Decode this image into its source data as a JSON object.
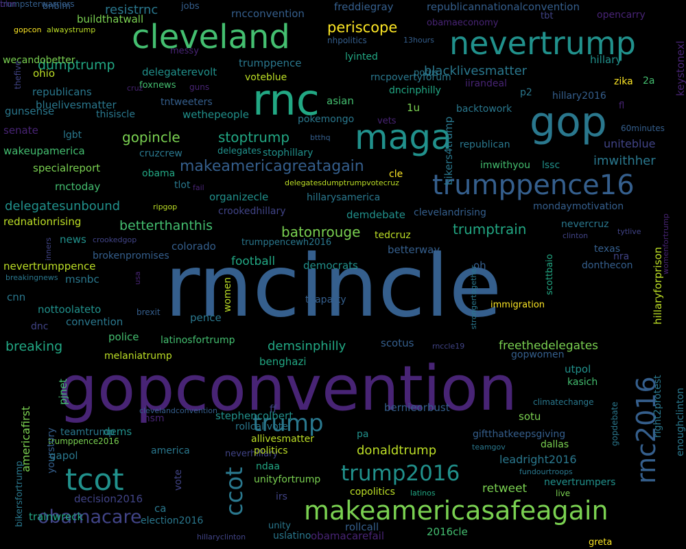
{
  "palette": [
    "#440154",
    "#482475",
    "#414487",
    "#355f8d",
    "#2a788e",
    "#21918c",
    "#22a884",
    "#44bf70",
    "#7ad151",
    "#bddf26",
    "#fde725"
  ],
  "words": [
    {
      "text": "rncincle",
      "c": 3
    },
    {
      "text": "gopconvention",
      "c": 1
    },
    {
      "text": "rnc",
      "c": 6
    },
    {
      "text": "gop",
      "c": 4
    },
    {
      "text": "maga",
      "c": 5
    },
    {
      "text": "cleveland",
      "c": 7
    },
    {
      "text": "nevertrump",
      "c": 5
    },
    {
      "text": "trumppence16",
      "c": 3
    },
    {
      "text": "tcot",
      "c": 5
    },
    {
      "text": "makeamericasafeagain",
      "c": 8
    },
    {
      "text": "rnc2016",
      "c": 3
    },
    {
      "text": "trump2016",
      "c": 5
    },
    {
      "text": "ccot",
      "c": 4
    },
    {
      "text": "obamacare",
      "c": 2
    },
    {
      "text": "trump",
      "c": 4
    },
    {
      "text": "makeamericagreatagain",
      "c": 3
    },
    {
      "text": "gopincle",
      "c": 8
    },
    {
      "text": "stoptrump",
      "c": 6
    },
    {
      "text": "periscope",
      "c": 10
    },
    {
      "text": "dumptrump",
      "c": 6
    },
    {
      "text": "resistrnc",
      "c": 4
    },
    {
      "text": "betterthanthis",
      "c": 7
    },
    {
      "text": "trumptrain",
      "c": 6
    },
    {
      "text": "breaking",
      "c": 6
    },
    {
      "text": "delegatesunbound",
      "c": 5
    },
    {
      "text": "freethedelegates",
      "c": 8
    },
    {
      "text": "batonrouge",
      "c": 8
    },
    {
      "text": "blacklivesmatter",
      "c": 4
    },
    {
      "text": "demsinphilly",
      "c": 6
    },
    {
      "text": "imwithher",
      "c": 4
    },
    {
      "text": "football",
      "c": 6
    },
    {
      "text": "donaldtrump",
      "c": 9
    },
    {
      "text": "retweet",
      "c": 8
    },
    {
      "text": "leadright2016",
      "c": 4
    },
    {
      "text": "americafirst",
      "c": 8
    },
    {
      "text": "hillaryforprison",
      "c": 9
    },
    {
      "text": "right2protest",
      "c": 4
    },
    {
      "text": "bikers4trump",
      "c": 4
    },
    {
      "text": "freddiegray",
      "c": 3
    },
    {
      "text": "republicannationalconvention",
      "c": 3
    },
    {
      "text": "buildthatwall",
      "c": 8
    },
    {
      "text": "rncconvention",
      "c": 3
    },
    {
      "text": "bnblm",
      "c": 3
    },
    {
      "text": "jobs",
      "c": 3
    },
    {
      "text": "tbt",
      "c": 2
    },
    {
      "text": "opencarry",
      "c": 1
    },
    {
      "text": "obamaeconomy",
      "c": 1
    },
    {
      "text": "nhpolitics",
      "c": 3
    },
    {
      "text": "13hours",
      "c": 3
    },
    {
      "text": "gopcon",
      "c": 10
    },
    {
      "text": "alwaystrump",
      "c": 9
    },
    {
      "text": "wecandobetter",
      "c": 8
    },
    {
      "text": "messy",
      "c": 1
    },
    {
      "text": "lyinted",
      "c": 6
    },
    {
      "text": "potus",
      "c": 4
    },
    {
      "text": "hillary",
      "c": 5
    },
    {
      "text": "trumppence",
      "c": 4
    },
    {
      "text": "delegaterevolt",
      "c": 5
    },
    {
      "text": "ohio",
      "c": 9
    },
    {
      "text": "rncpovertyforum",
      "c": 4
    },
    {
      "text": "iirandeal",
      "c": 1
    },
    {
      "text": "p2",
      "c": 4
    },
    {
      "text": "zika",
      "c": 10
    },
    {
      "text": "2a",
      "c": 7
    },
    {
      "text": "republicans",
      "c": 4
    },
    {
      "text": "foxnews",
      "c": 7
    },
    {
      "text": "guns",
      "c": 1
    },
    {
      "text": "voteblue",
      "c": 9
    },
    {
      "text": "dncinphilly",
      "c": 6
    },
    {
      "text": "hillary2016",
      "c": 3
    },
    {
      "text": "fl",
      "c": 1
    },
    {
      "text": "thefive",
      "c": 2
    },
    {
      "text": "cruz",
      "c": 1
    },
    {
      "text": "bluelivesmatter",
      "c": 4
    },
    {
      "text": "tntweeters",
      "c": 3
    },
    {
      "text": "asian",
      "c": 7
    },
    {
      "text": "backtowork",
      "c": 4
    },
    {
      "text": "keystonexl",
      "c": 1
    },
    {
      "text": "gunsense",
      "c": 4
    },
    {
      "text": "thisiscle",
      "c": 4
    },
    {
      "text": "wethepeople",
      "c": 5
    },
    {
      "text": "1u",
      "c": 8
    },
    {
      "text": "pokemongo",
      "c": 4
    },
    {
      "text": "vets",
      "c": 1
    },
    {
      "text": "60minutes",
      "c": 3
    },
    {
      "text": "senate",
      "c": 1
    },
    {
      "text": "lgbt",
      "c": 4
    },
    {
      "text": "btthq",
      "c": 3
    },
    {
      "text": "uniteblue",
      "c": 2
    },
    {
      "text": "wakeupamerica",
      "c": 7
    },
    {
      "text": "cruzcrew",
      "c": 4
    },
    {
      "text": "delegates",
      "c": 5
    },
    {
      "text": "stophillary",
      "c": 5
    },
    {
      "text": "republican",
      "c": 4
    },
    {
      "text": "specialreport",
      "c": 8
    },
    {
      "text": "obama",
      "c": 6
    },
    {
      "text": "cle",
      "c": 10
    },
    {
      "text": "imwithyou",
      "c": 7
    },
    {
      "text": "lssc",
      "c": 5
    },
    {
      "text": "rnctoday",
      "c": 7
    },
    {
      "text": "tlot",
      "c": 4
    },
    {
      "text": "fail",
      "c": 1
    },
    {
      "text": "delegatesdumptrumpvotecruz",
      "c": 9
    },
    {
      "text": "hillarysamerica",
      "c": 4
    },
    {
      "text": "organizecle",
      "c": 5
    },
    {
      "text": "ripgop",
      "c": 9
    },
    {
      "text": "crookedhillary",
      "c": 2
    },
    {
      "text": "clevelandrising",
      "c": 3
    },
    {
      "text": "mondaymotivation",
      "c": 3
    },
    {
      "text": "rednationrising",
      "c": 9
    },
    {
      "text": "demdebate",
      "c": 5
    },
    {
      "text": "nevercruz",
      "c": 4
    },
    {
      "text": "tytlive",
      "c": 2
    },
    {
      "text": "clinton",
      "c": 2
    },
    {
      "text": "womenfortrump",
      "c": 1
    },
    {
      "text": "inners",
      "c": 2
    },
    {
      "text": "news",
      "c": 5
    },
    {
      "text": "crookedgop",
      "c": 2
    },
    {
      "text": "trumppencewh2016",
      "c": 4
    },
    {
      "text": "tedcruz",
      "c": 9
    },
    {
      "text": "betterway",
      "c": 3
    },
    {
      "text": "strongertogether",
      "c": 4
    },
    {
      "text": "scottbaio",
      "c": 6
    },
    {
      "text": "texas",
      "c": 3
    },
    {
      "text": "nra",
      "c": 2
    },
    {
      "text": "brokenpromises",
      "c": 3
    },
    {
      "text": "colorado",
      "c": 3
    },
    {
      "text": "democrats",
      "c": 5
    },
    {
      "text": "oh",
      "c": 3
    },
    {
      "text": "donthecon",
      "c": 3
    },
    {
      "text": "nevertrumppence",
      "c": 9
    },
    {
      "text": "women",
      "c": 9
    },
    {
      "text": "usa",
      "c": 1
    },
    {
      "text": "breakingnews",
      "c": 4
    },
    {
      "text": "msnbc",
      "c": 4
    },
    {
      "text": "cnn",
      "c": 4
    },
    {
      "text": "teaparty",
      "c": 3
    },
    {
      "text": "immigration",
      "c": 10
    },
    {
      "text": "nottoolateto",
      "c": 5
    },
    {
      "text": "brexit",
      "c": 3
    },
    {
      "text": "pence",
      "c": 4
    },
    {
      "text": "dnc",
      "c": 2
    },
    {
      "text": "convention",
      "c": 4
    },
    {
      "text": "police",
      "c": 7
    },
    {
      "text": "latinosfortrump",
      "c": 7
    },
    {
      "text": "scotus",
      "c": 3
    },
    {
      "text": "rnccle19",
      "c": 2
    },
    {
      "text": "melaniatrump",
      "c": 9
    },
    {
      "text": "benghazi",
      "c": 6
    },
    {
      "text": "gopwomen",
      "c": 3
    },
    {
      "text": "pjnet",
      "c": 7
    },
    {
      "text": "utpol",
      "c": 5
    },
    {
      "text": "kasich",
      "c": 7
    },
    {
      "text": "bernieorbust",
      "c": 3
    },
    {
      "text": "climatechange",
      "c": 4
    },
    {
      "text": "gopdebate",
      "c": 4
    },
    {
      "text": "enoughclinton",
      "c": 4
    },
    {
      "text": "bikersfortrump",
      "c": 4
    },
    {
      "text": "clevelandconvention",
      "c": 3
    },
    {
      "text": "msm",
      "c": 1
    },
    {
      "text": "ff",
      "c": 2
    },
    {
      "text": "stephencolbert",
      "c": 5
    },
    {
      "text": "sotu",
      "c": 8
    },
    {
      "text": "teamtrump",
      "c": 4
    },
    {
      "text": "dems",
      "c": 5
    },
    {
      "text": "rollcallvote",
      "c": 4
    },
    {
      "text": "pa",
      "c": 5
    },
    {
      "text": "giftthatkeepsgiving",
      "c": 3
    },
    {
      "text": "trumppence2016",
      "c": 8
    },
    {
      "text": "yourstory",
      "c": 3
    },
    {
      "text": "allivesmatter",
      "c": 9
    },
    {
      "text": "teamgov",
      "c": 4
    },
    {
      "text": "dallas",
      "c": 8
    },
    {
      "text": "gapol",
      "c": 4
    },
    {
      "text": "america",
      "c": 4
    },
    {
      "text": "neverhillary",
      "c": 2
    },
    {
      "text": "politics",
      "c": 9
    },
    {
      "text": "ndaa",
      "c": 6
    },
    {
      "text": "fundourtroops",
      "c": 4
    },
    {
      "text": "unityfortrump",
      "c": 8
    },
    {
      "text": "vote",
      "c": 2
    },
    {
      "text": "nevertrumpers",
      "c": 5
    },
    {
      "text": "live",
      "c": 8
    },
    {
      "text": "decision2016",
      "c": 2
    },
    {
      "text": "irs",
      "c": 2
    },
    {
      "text": "copolitics",
      "c": 9
    },
    {
      "text": "latinos",
      "c": 6
    },
    {
      "text": "ca",
      "c": 4
    },
    {
      "text": "unity",
      "c": 4
    },
    {
      "text": "rollcall",
      "c": 3
    },
    {
      "text": "2016cle",
      "c": 7
    },
    {
      "text": "trainwreck",
      "c": 6
    },
    {
      "text": "election2016",
      "c": 4
    },
    {
      "text": "hillaryclinton",
      "c": 2
    },
    {
      "text": "uslatino",
      "c": 4
    },
    {
      "text": "obamacarefail",
      "c": 1
    },
    {
      "text": "greta",
      "c": 10
    },
    {
      "text": "trumpsterwarriors",
      "c": 3
    },
    {
      "text": "blm",
      "c": 1
    }
  ]
}
